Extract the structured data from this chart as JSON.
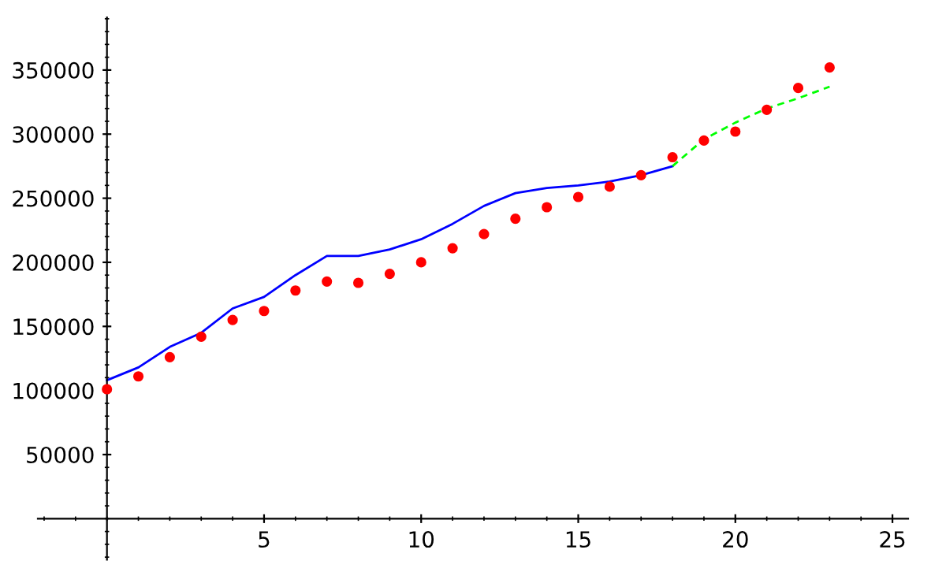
{
  "chart_data": {
    "type": "line",
    "xlim": [
      -2.2,
      25.5
    ],
    "ylim": [
      -32000,
      391000
    ],
    "xticks": [
      5,
      10,
      15,
      20,
      25
    ],
    "yticks": [
      50000,
      100000,
      150000,
      200000,
      250000,
      300000,
      350000
    ],
    "grid": false,
    "legend": false,
    "series": [
      {
        "color": "#0000ff",
        "line_style": "solid",
        "x": [
          0,
          1,
          2,
          3,
          4,
          5,
          6,
          7,
          8,
          9,
          10,
          11,
          12,
          13,
          14,
          15,
          16,
          17,
          18
        ],
        "values": [
          108000,
          118000,
          134000,
          145000,
          164000,
          173000,
          190000,
          205000,
          205000,
          210000,
          218000,
          230000,
          244000,
          254000,
          258000,
          260000,
          263000,
          268000,
          275000
        ]
      },
      {
        "color": "#00ff00",
        "line_style": "dashed",
        "x": [
          18,
          19,
          20,
          21,
          22,
          23
        ],
        "values": [
          275000,
          296000,
          309000,
          320000,
          328000,
          337000
        ]
      },
      {
        "type": "scatter",
        "color": "#ff0000",
        "marker": "circle",
        "x": [
          0,
          1,
          2,
          3,
          4,
          5,
          6,
          7,
          8,
          9,
          10,
          11,
          12,
          13,
          14,
          15,
          16,
          17,
          18,
          19,
          20,
          21,
          22,
          23
        ],
        "values": [
          101000,
          111000,
          126000,
          142000,
          155000,
          162000,
          178000,
          185000,
          184000,
          191000,
          200000,
          211000,
          222000,
          234000,
          243000,
          251000,
          259000,
          268000,
          282000,
          295000,
          302000,
          319000,
          336000,
          352000
        ]
      }
    ]
  }
}
